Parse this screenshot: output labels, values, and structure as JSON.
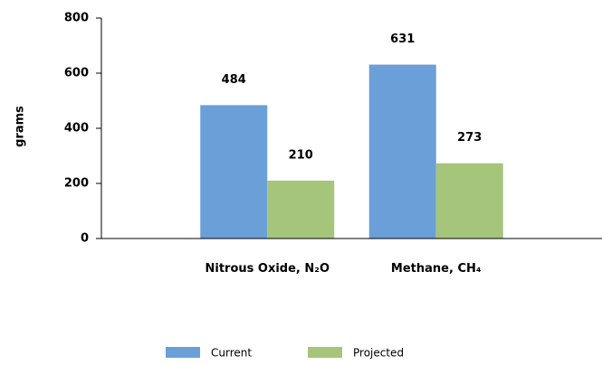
{
  "chart_data": {
    "type": "bar",
    "y_label": "grams",
    "categories": [
      "Nitrous Oxide, N₂O",
      "Methane, CH₄"
    ],
    "series": [
      {
        "name": "Current",
        "color": "#6a9fd8",
        "values": [
          484,
          631
        ]
      },
      {
        "name": "Projected",
        "color": "#a5c57a",
        "values": [
          210,
          273
        ]
      }
    ],
    "ylim": [
      0,
      800
    ],
    "yticks": [
      0,
      200,
      400,
      600,
      800
    ],
    "legend": "bottom"
  }
}
